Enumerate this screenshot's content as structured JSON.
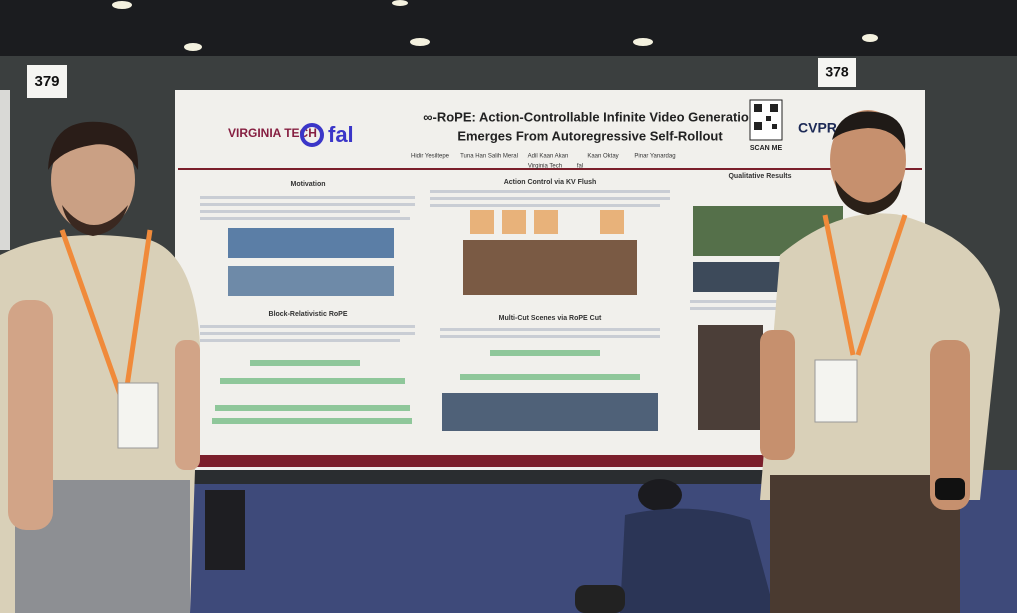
{
  "booth_numbers": [
    "379",
    "378"
  ],
  "poster": {
    "title_lines": [
      "∞-RoPE: Action-Controllable Infinite Video Generation",
      "Emerges From Autoregressive Self-Rollout"
    ],
    "authors": [
      "Hidir Yesiltepe",
      "Tuna Han Salih Meral",
      "Adil Kaan Akan",
      "Kaan Oktay",
      "Pinar Yanardag"
    ],
    "affiliations": [
      "Virginia Tech",
      "fal"
    ],
    "logos": {
      "virginia_tech": "VIRGINIA TECH",
      "fal": "fal",
      "qr_caption": "SCAN ME",
      "conference": "CVPR"
    },
    "sections": [
      "Motivation",
      "Action Control via KV Flush",
      "Qualitative Results",
      "Block-Relativistic RoPE",
      "Multi-Cut Scenes via RoPE Cut"
    ]
  }
}
